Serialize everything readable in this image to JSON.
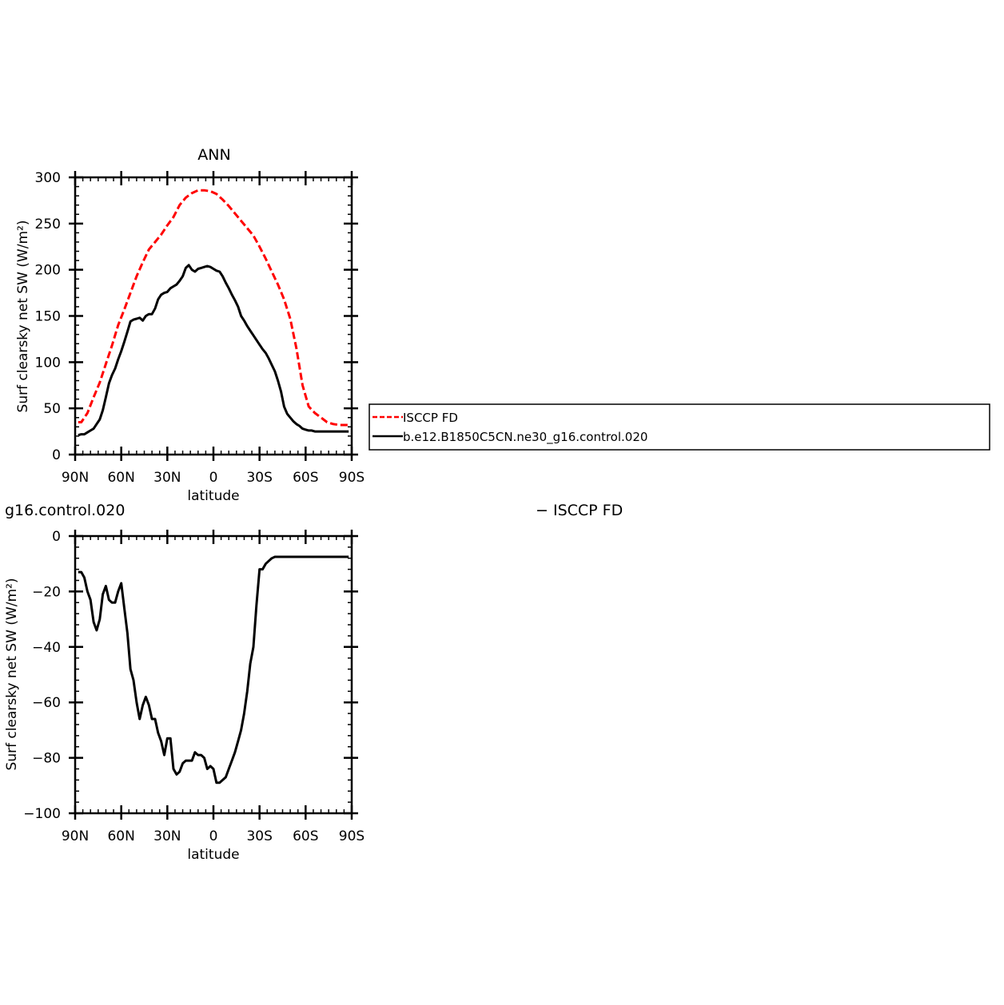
{
  "chart_data": [
    {
      "type": "line",
      "title": "ANN",
      "xlabel": "latitude",
      "ylabel": "Surf clearsky net SW (W/m²)",
      "xlim": [
        90,
        -90
      ],
      "ylim": [
        0,
        300
      ],
      "x_ticks": [
        90,
        60,
        30,
        0,
        -30,
        -60,
        -90
      ],
      "x_tick_labels": [
        "90N",
        "60N",
        "30N",
        "0",
        "30S",
        "60S",
        "90S"
      ],
      "y_ticks": [
        0,
        50,
        100,
        150,
        200,
        250,
        300
      ],
      "y_tick_labels": [
        "0",
        "50",
        "100",
        "150",
        "200",
        "250",
        "300"
      ],
      "legend": "right",
      "series": [
        {
          "name": "ISCCP FD",
          "color": "#ff0000",
          "dash": "dashed",
          "x": [
            88,
            86,
            82,
            78,
            74,
            70,
            66,
            62,
            58,
            54,
            50,
            46,
            42,
            38,
            34,
            30,
            26,
            22,
            18,
            14,
            10,
            6,
            2,
            -2,
            -6,
            -10,
            -14,
            -18,
            -22,
            -26,
            -30,
            -34,
            -38,
            -42,
            -46,
            -50,
            -54,
            -58,
            -62,
            -66,
            -70,
            -74,
            -78,
            -82,
            -86,
            -88
          ],
          "y": [
            35,
            35,
            45,
            62,
            78,
            98,
            118,
            140,
            157,
            175,
            193,
            208,
            222,
            230,
            238,
            248,
            257,
            270,
            278,
            283,
            286,
            286,
            285,
            282,
            276,
            269,
            261,
            253,
            245,
            237,
            225,
            212,
            198,
            184,
            168,
            147,
            115,
            75,
            52,
            45,
            40,
            35,
            33,
            32,
            32,
            32
          ]
        },
        {
          "name": "b.e12.B1850C5CN.ne30_g16.control.020",
          "color": "#000000",
          "dash": "solid",
          "x": [
            88,
            86,
            84,
            82,
            80,
            78,
            76,
            74,
            72,
            70,
            68,
            66,
            64,
            62,
            60,
            58,
            56,
            54,
            52,
            50,
            48,
            46,
            44,
            42,
            40,
            38,
            36,
            34,
            32,
            30,
            28,
            26,
            24,
            22,
            20,
            18,
            16,
            14,
            12,
            10,
            8,
            6,
            4,
            2,
            0,
            -2,
            -4,
            -6,
            -8,
            -10,
            -12,
            -14,
            -16,
            -18,
            -20,
            -22,
            -24,
            -26,
            -28,
            -30,
            -32,
            -34,
            -36,
            -38,
            -40,
            -42,
            -44,
            -46,
            -48,
            -50,
            -52,
            -54,
            -56,
            -58,
            -60,
            -62,
            -64,
            -66,
            -68,
            -70,
            -72,
            -74,
            -76,
            -78,
            -80,
            -82,
            -84,
            -86,
            -88
          ],
          "y": [
            21,
            22,
            22,
            24,
            26,
            28,
            33,
            38,
            48,
            62,
            77,
            86,
            93,
            103,
            112,
            122,
            133,
            144,
            146,
            147,
            148,
            145,
            150,
            152,
            152,
            158,
            168,
            173,
            175,
            176,
            180,
            182,
            184,
            188,
            193,
            202,
            205,
            200,
            198,
            201,
            202,
            203,
            204,
            203,
            201,
            199,
            198,
            193,
            186,
            180,
            173,
            167,
            160,
            150,
            145,
            139,
            134,
            129,
            124,
            119,
            114,
            110,
            104,
            97,
            90,
            80,
            68,
            52,
            44,
            40,
            36,
            33,
            31,
            28,
            27,
            26,
            26,
            25,
            25,
            25,
            25,
            25,
            25,
            25,
            25,
            25,
            25,
            25,
            25
          ]
        }
      ]
    },
    {
      "type": "line",
      "title": "g16.control.020",
      "right_label": "− ISCCP FD",
      "xlabel": "latitude",
      "ylabel": "Surf clearsky net SW (W/m²)",
      "xlim": [
        90,
        -90
      ],
      "ylim": [
        -100,
        0
      ],
      "x_ticks": [
        90,
        60,
        30,
        0,
        -30,
        -60,
        -90
      ],
      "x_tick_labels": [
        "90N",
        "60N",
        "30N",
        "0",
        "30S",
        "60S",
        "90S"
      ],
      "y_ticks": [
        -100,
        -80,
        -60,
        -40,
        -20,
        0
      ],
      "y_tick_labels": [
        "−100",
        "−80",
        "−60",
        "−40",
        "−20",
        "0"
      ],
      "series": [
        {
          "color": "#000000",
          "dash": "solid",
          "x": [
            88,
            86,
            84,
            82,
            80,
            78,
            76,
            74,
            72,
            70,
            68,
            66,
            64,
            62,
            60,
            58,
            56,
            54,
            52,
            50,
            48,
            46,
            44,
            42,
            40,
            38,
            36,
            34,
            32,
            30,
            28,
            26,
            24,
            22,
            20,
            18,
            16,
            14,
            12,
            10,
            8,
            6,
            4,
            2,
            0,
            -2,
            -4,
            -6,
            -8,
            -10,
            -12,
            -14,
            -16,
            -18,
            -20,
            -22,
            -24,
            -26,
            -28,
            -30,
            -32,
            -34,
            -36,
            -38,
            -40,
            -42,
            -44,
            -46,
            -48,
            -50,
            -52,
            -54,
            -56,
            -58,
            -60,
            -62,
            -64,
            -66,
            -68,
            -70,
            -72,
            -74,
            -76,
            -78,
            -80,
            -82,
            -84,
            -86,
            -88
          ],
          "y": [
            -13,
            -13,
            -15,
            -20,
            -23,
            -31,
            -34,
            -30,
            -21,
            -18,
            -23,
            -24,
            -24,
            -20,
            -17,
            -26,
            -35,
            -48,
            -52,
            -60,
            -66,
            -61,
            -58,
            -61,
            -66,
            -66,
            -71,
            -74,
            -79,
            -73,
            -73,
            -84,
            -86,
            -85,
            -82,
            -81,
            -81,
            -81,
            -78,
            -79,
            -79,
            -80,
            -84,
            -83,
            -84,
            -89,
            -89,
            -88,
            -87,
            -84,
            -81,
            -78,
            -74,
            -70,
            -64,
            -56,
            -46,
            -40,
            -25,
            -12,
            -12,
            -10,
            -9,
            -8,
            -7.5,
            -7.5,
            -7.5,
            -7.5,
            -7.5,
            -7.5,
            -7.5,
            -7.5,
            -7.5,
            -7.5,
            -7.5,
            -7.5,
            -7.5,
            -7.5,
            -7.5,
            -7.5,
            -7.5,
            -7.5,
            -7.5,
            -7.5,
            -7.5,
            -7.5,
            -7.5,
            -7.5,
            -7.5
          ]
        }
      ]
    }
  ]
}
